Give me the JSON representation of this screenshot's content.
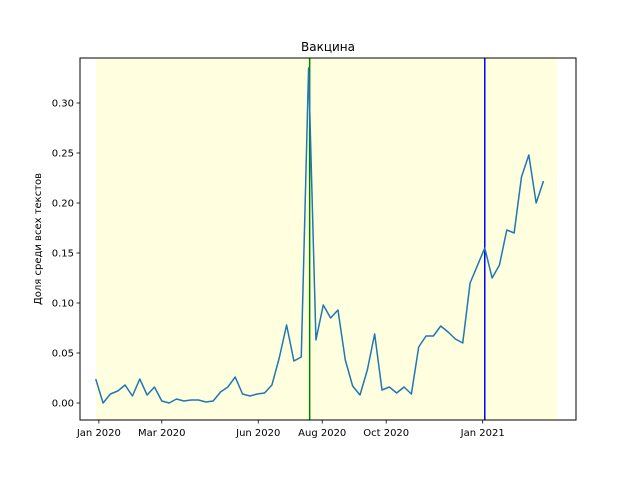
{
  "chart_data": {
    "type": "line",
    "title": "Вакцина",
    "xlabel": "",
    "ylabel": "Доля среди всех текстов",
    "xlim": [
      "2019-12-14",
      "2021-03-31"
    ],
    "ylim": [
      -0.017,
      0.345
    ],
    "x_ticks": [
      {
        "date": "2020-01-01",
        "label": "Jan 2020"
      },
      {
        "date": "2020-03-01",
        "label": "Mar 2020"
      },
      {
        "date": "2020-06-01",
        "label": "Jun 2020"
      },
      {
        "date": "2020-08-01",
        "label": "Aug 2020"
      },
      {
        "date": "2020-10-01",
        "label": "Oct 2020"
      },
      {
        "date": "2021-01-01",
        "label": "Jan 2021"
      }
    ],
    "y_ticks": [
      0.0,
      0.05,
      0.1,
      0.15,
      0.2,
      0.25,
      0.3
    ],
    "y_tick_labels": [
      "0.00",
      "0.05",
      "0.10",
      "0.15",
      "0.20",
      "0.25",
      "0.30"
    ],
    "grid": false,
    "shaded_region": {
      "from": "2019-12-29",
      "to": "2021-03-13",
      "color": "#ffffe0"
    },
    "vertical_lines": [
      {
        "date": "2020-07-20",
        "color": "#008000"
      },
      {
        "date": "2021-01-03",
        "color": "#0000ff"
      }
    ],
    "series": [
      {
        "color": "#1f77b4",
        "points": [
          [
            "2019-12-29",
            0.024
          ],
          [
            "2020-01-05",
            0.0
          ],
          [
            "2020-01-12",
            0.009
          ],
          [
            "2020-01-19",
            0.012
          ],
          [
            "2020-01-26",
            0.018
          ],
          [
            "2020-02-02",
            0.007
          ],
          [
            "2020-02-09",
            0.024
          ],
          [
            "2020-02-16",
            0.008
          ],
          [
            "2020-02-23",
            0.016
          ],
          [
            "2020-03-01",
            0.002
          ],
          [
            "2020-03-08",
            0.0
          ],
          [
            "2020-03-15",
            0.004
          ],
          [
            "2020-03-22",
            0.002
          ],
          [
            "2020-03-29",
            0.003
          ],
          [
            "2020-04-05",
            0.003
          ],
          [
            "2020-04-12",
            0.001
          ],
          [
            "2020-04-19",
            0.002
          ],
          [
            "2020-04-26",
            0.011
          ],
          [
            "2020-05-03",
            0.016
          ],
          [
            "2020-05-10",
            0.026
          ],
          [
            "2020-05-17",
            0.009
          ],
          [
            "2020-05-24",
            0.007
          ],
          [
            "2020-05-31",
            0.009
          ],
          [
            "2020-06-07",
            0.01
          ],
          [
            "2020-06-14",
            0.018
          ],
          [
            "2020-06-21",
            0.045
          ],
          [
            "2020-06-28",
            0.078
          ],
          [
            "2020-07-05",
            0.042
          ],
          [
            "2020-07-12",
            0.046
          ],
          [
            "2020-07-19",
            0.335
          ],
          [
            "2020-07-26",
            0.063
          ],
          [
            "2020-08-02",
            0.098
          ],
          [
            "2020-08-09",
            0.085
          ],
          [
            "2020-08-16",
            0.093
          ],
          [
            "2020-08-23",
            0.043
          ],
          [
            "2020-08-30",
            0.017
          ],
          [
            "2020-09-06",
            0.008
          ],
          [
            "2020-09-13",
            0.033
          ],
          [
            "2020-09-20",
            0.069
          ],
          [
            "2020-09-27",
            0.013
          ],
          [
            "2020-10-04",
            0.016
          ],
          [
            "2020-10-11",
            0.01
          ],
          [
            "2020-10-18",
            0.016
          ],
          [
            "2020-10-25",
            0.009
          ],
          [
            "2020-11-01",
            0.056
          ],
          [
            "2020-11-08",
            0.067
          ],
          [
            "2020-11-15",
            0.067
          ],
          [
            "2020-11-22",
            0.077
          ],
          [
            "2020-11-29",
            0.071
          ],
          [
            "2020-12-06",
            0.064
          ],
          [
            "2020-12-13",
            0.06
          ],
          [
            "2020-12-20",
            0.12
          ],
          [
            "2021-01-03",
            0.155
          ],
          [
            "2021-01-10",
            0.125
          ],
          [
            "2021-01-17",
            0.138
          ],
          [
            "2021-01-24",
            0.173
          ],
          [
            "2021-01-31",
            0.17
          ],
          [
            "2021-02-07",
            0.226
          ],
          [
            "2021-02-14",
            0.248
          ],
          [
            "2021-02-21",
            0.2
          ],
          [
            "2021-02-28",
            0.222
          ]
        ]
      }
    ]
  }
}
